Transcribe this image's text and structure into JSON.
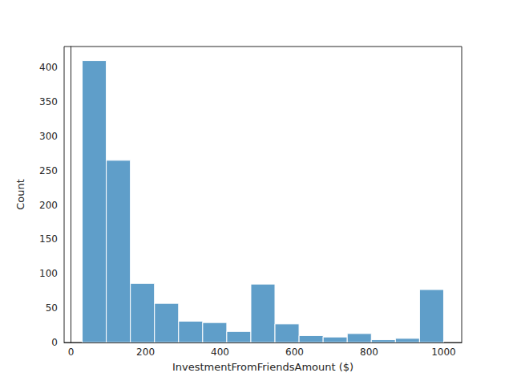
{
  "chart_data": {
    "type": "histogram",
    "xlabel": "InvestmentFromFriendsAmount ($)",
    "ylabel": "Count",
    "bins": [
      30,
      94.67,
      159.33,
      224,
      288.67,
      353.33,
      418,
      482.67,
      547.33,
      612,
      676.67,
      741.33,
      806,
      870.67,
      935.33,
      1000
    ],
    "counts": [
      410,
      265,
      86,
      57,
      31,
      29,
      16,
      85,
      27,
      10,
      8,
      13,
      4,
      6,
      77
    ],
    "color": "#5f9ec9",
    "xlim": [
      -18.5,
      1048.5
    ],
    "xticks": [
      0,
      200,
      400,
      600,
      800,
      1000
    ],
    "ylim": [
      0,
      430.5
    ],
    "yticks": [
      0,
      50,
      100,
      150,
      200,
      250,
      300,
      350,
      400
    ],
    "grid": false
  }
}
